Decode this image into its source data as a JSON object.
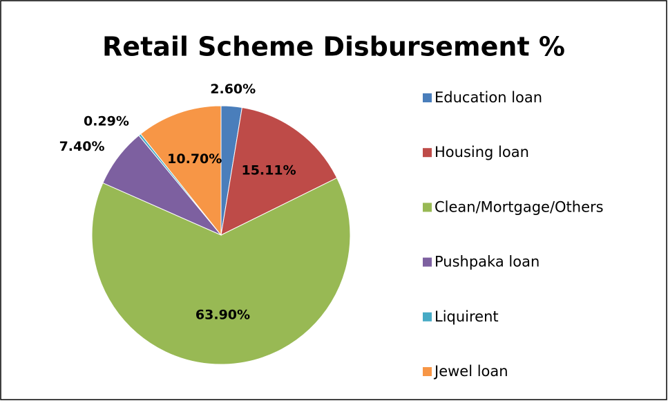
{
  "chart_data": {
    "type": "pie",
    "title": "Retail Scheme Disbursement %",
    "categories": [
      "Education loan",
      "Housing loan",
      "Clean/Mortgage/Others",
      "Pushpaka loan",
      "Liquirent",
      "Jewel loan"
    ],
    "values": [
      2.6,
      15.11,
      63.9,
      7.4,
      0.29,
      10.7
    ],
    "value_labels": [
      "2.60%",
      "15.11%",
      "63.90%",
      "7.40%",
      "0.29%",
      "10.70%"
    ],
    "colors": [
      "#4a7ebb",
      "#be4b48",
      "#98b954",
      "#7d60a0",
      "#46aac5",
      "#f79646"
    ],
    "legend": "right"
  }
}
